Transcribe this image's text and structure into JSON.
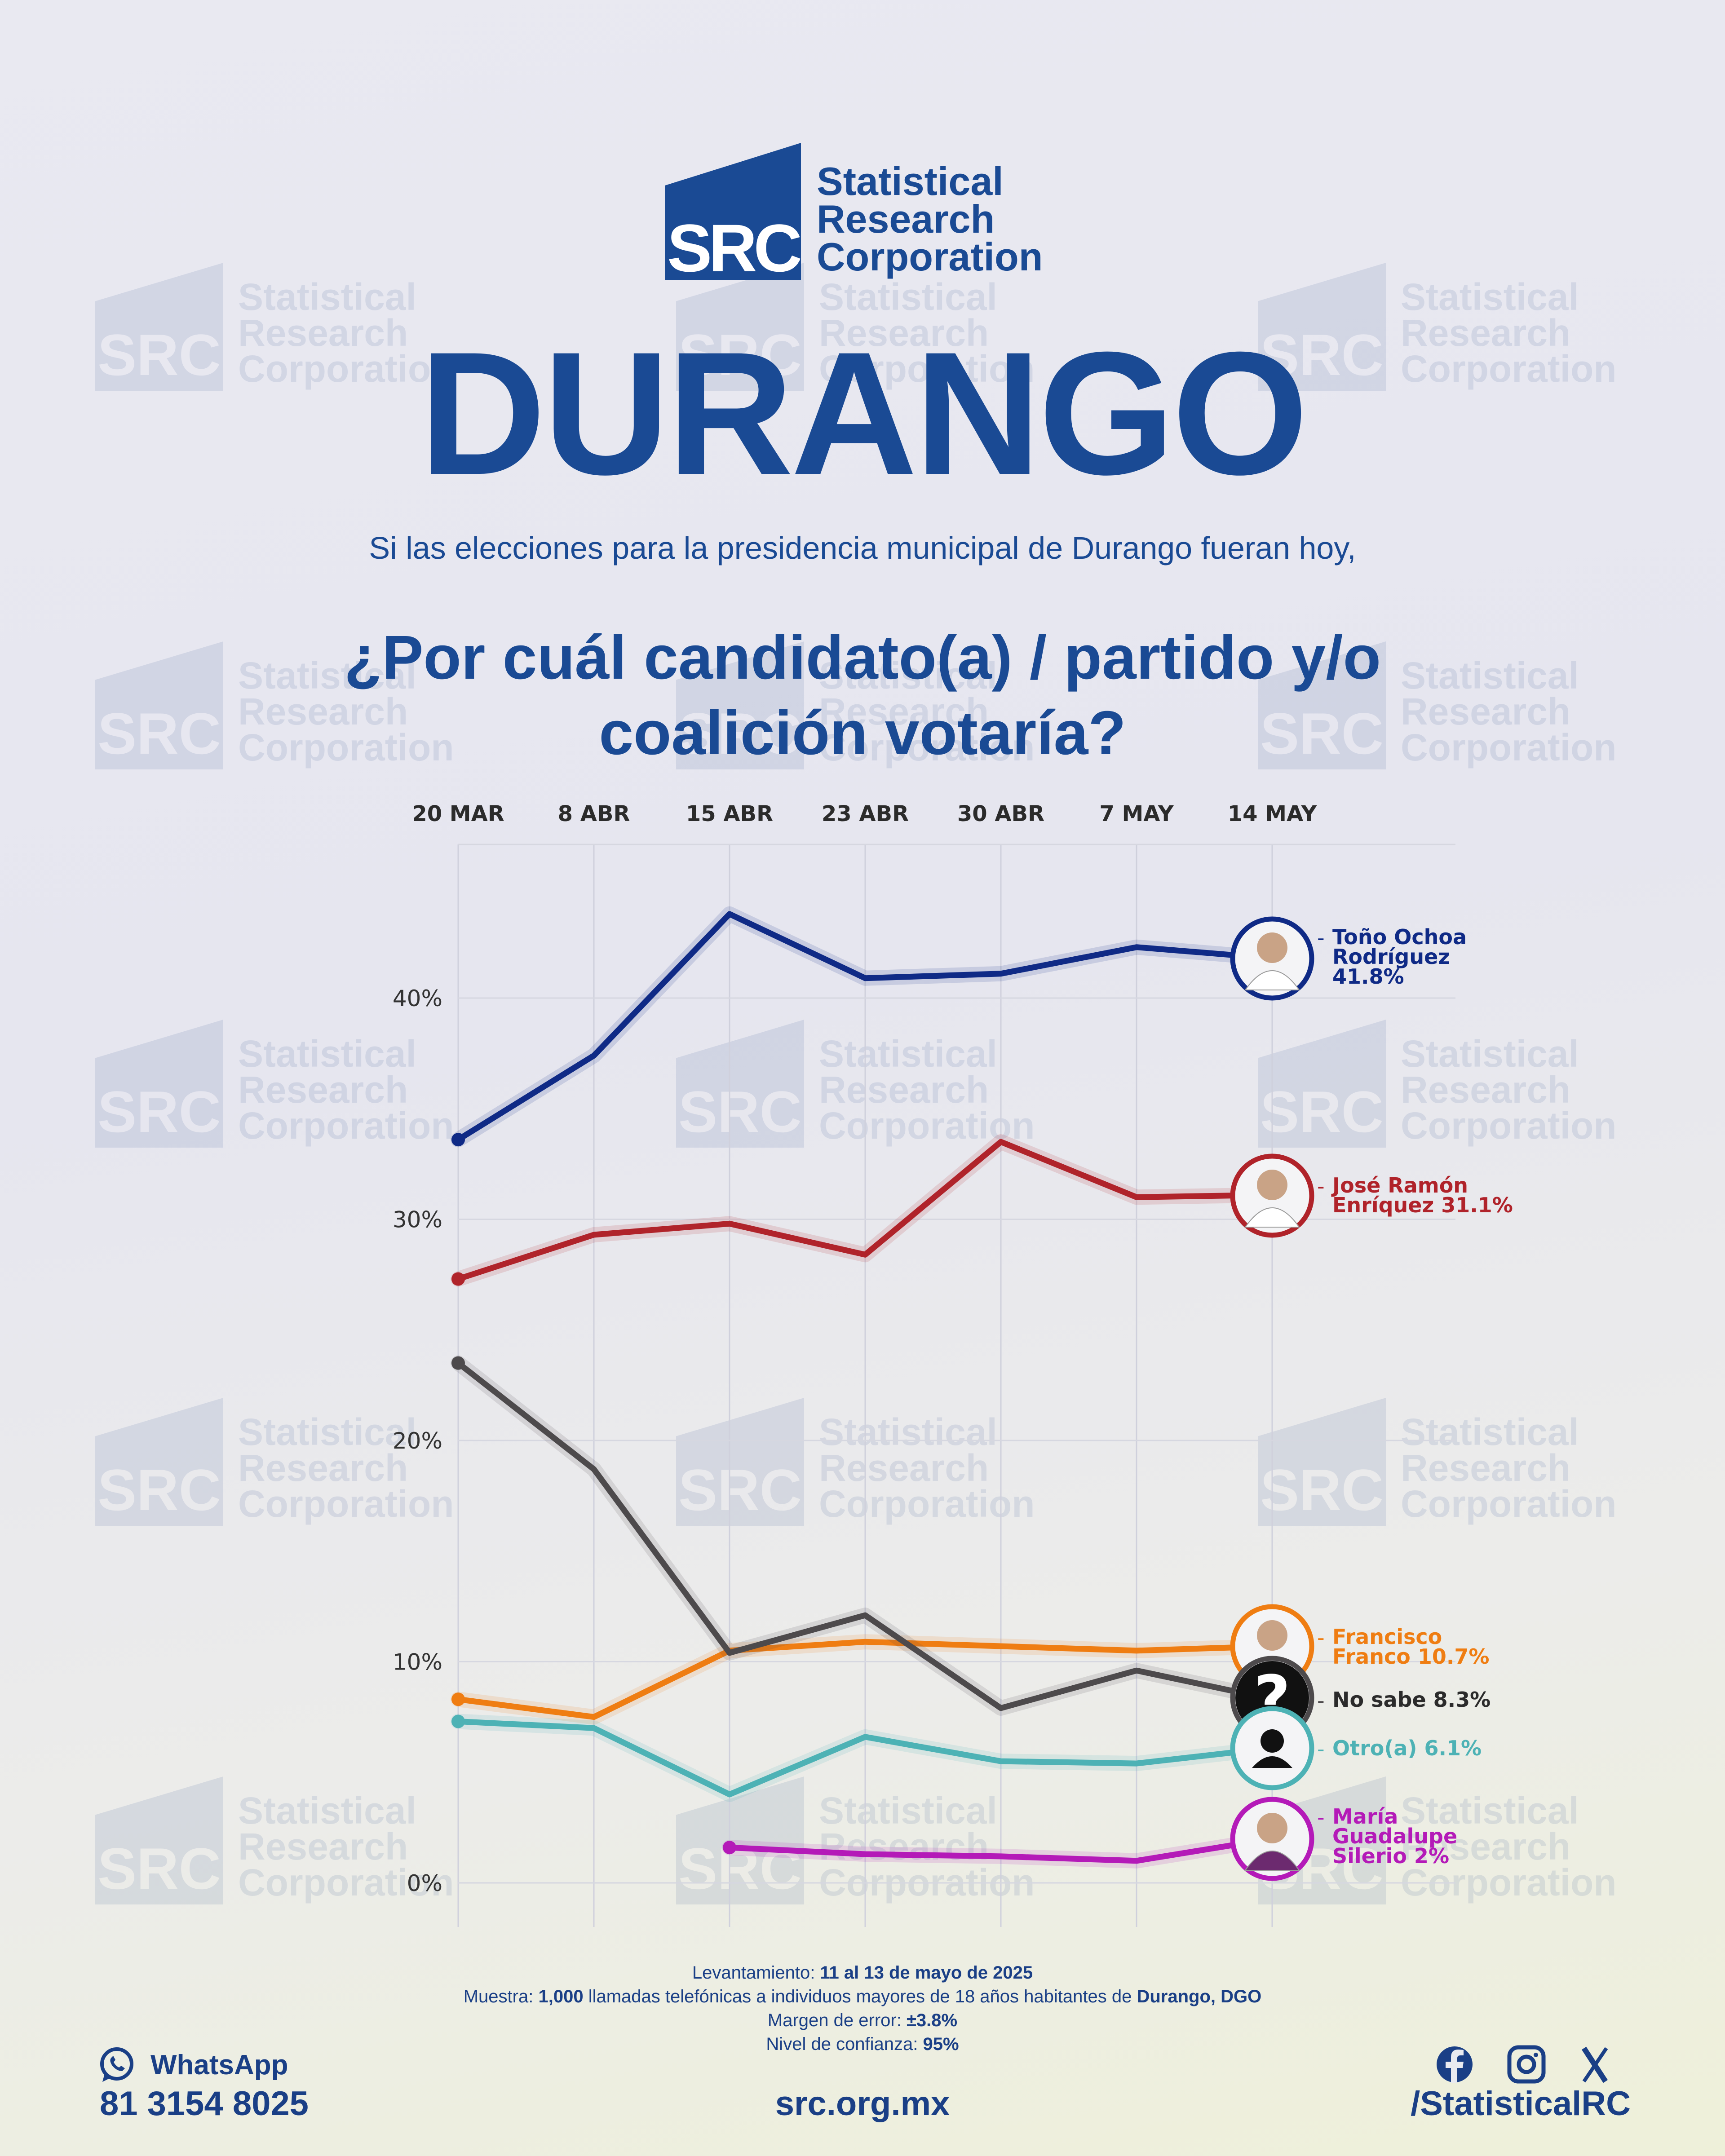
{
  "header": {
    "logo_mark_text": "SRC",
    "logo_name": [
      "Statistical",
      "Research",
      "Corporation"
    ],
    "title": "DURANGO",
    "subtitle": "Si las elecciones para la presidencia municipal de Durango fueran hoy,",
    "question_line1": "¿Por cuál candidato(a) / partido y/o",
    "question_line2": "coalición votaría?"
  },
  "chart_data": {
    "type": "line",
    "categories": [
      "20 MAR",
      "8 ABR",
      "15 ABR",
      "23 ABR",
      "30 ABR",
      "7 MAY",
      "14 MAY"
    ],
    "y_ticks": [
      "0%",
      "10%",
      "20%",
      "30%",
      "40%"
    ],
    "ylim": [
      0,
      46
    ],
    "grid": true,
    "series": [
      {
        "name": "Toño Ochoa Rodríguez",
        "label_lines": [
          "Toño Ochoa",
          "Rodríguez",
          "41.8%"
        ],
        "color": "#0f2a86",
        "values": [
          33.6,
          37.4,
          43.8,
          40.9,
          41.1,
          42.3,
          41.8
        ]
      },
      {
        "name": "José Ramón Enríquez",
        "label_lines": [
          "José Ramón",
          "Enríquez 31.1%"
        ],
        "color": "#b0232a",
        "values": [
          27.3,
          29.3,
          29.8,
          28.4,
          33.5,
          31.0,
          31.1
        ]
      },
      {
        "name": "Francisco Franco",
        "label_lines": [
          "Francisco",
          "Franco 10.7%"
        ],
        "color": "#ef7d12",
        "values": [
          8.3,
          7.5,
          10.5,
          10.9,
          10.7,
          10.5,
          10.7
        ]
      },
      {
        "name": "No sabe",
        "label_lines": [
          "No sabe 8.3%"
        ],
        "color": "#4d4a4c",
        "values": [
          23.5,
          18.7,
          10.4,
          12.1,
          7.9,
          9.6,
          8.3
        ]
      },
      {
        "name": "Otro(a)",
        "label_lines": [
          "Otro(a) 6.1%"
        ],
        "color": "#4db2b5",
        "values": [
          7.3,
          7.0,
          4.0,
          6.6,
          5.5,
          5.4,
          6.1
        ]
      },
      {
        "name": "María Guadalupe Silerio",
        "label_lines": [
          "María",
          "Guadalupe",
          "Silerio 2%"
        ],
        "color": "#b41ab8",
        "values": [
          null,
          null,
          1.6,
          1.3,
          1.2,
          1.0,
          2.0
        ]
      }
    ]
  },
  "footnotes": {
    "survey_label": "Levantamiento:",
    "survey_value": "11 al 13 de mayo de 2025",
    "sample_label": "Muestra:",
    "sample_value": "1,000",
    "sample_text": "llamadas telefónicas a individuos mayores de 18 años habitantes de",
    "sample_place": "Durango, DGO",
    "error_label": "Margen de error:",
    "error_value": "±3.8%",
    "confidence_label": "Nivel de confianza:",
    "confidence_value": "95%"
  },
  "footer": {
    "whatsapp_label": "WhatsApp",
    "whatsapp_number": "81 3154 8025",
    "website": "src.org.mx",
    "social_handle": "/StatisticalRC",
    "social_icons": [
      "facebook-icon",
      "instagram-icon",
      "x-icon"
    ]
  },
  "colors": {
    "brand": "#1a4a94"
  }
}
